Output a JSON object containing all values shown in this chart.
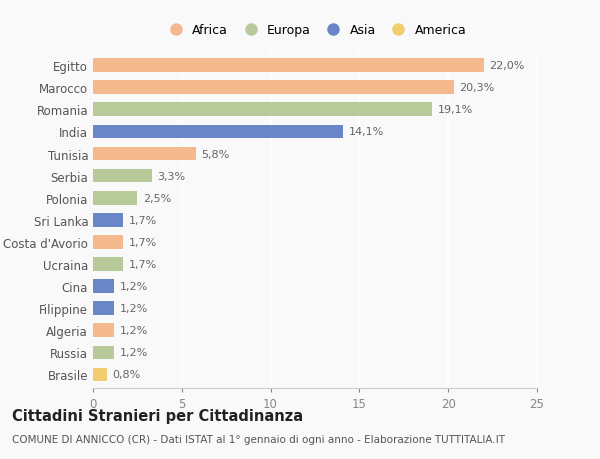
{
  "countries": [
    "Egitto",
    "Marocco",
    "Romania",
    "India",
    "Tunisia",
    "Serbia",
    "Polonia",
    "Sri Lanka",
    "Costa d'Avorio",
    "Ucraina",
    "Cina",
    "Filippine",
    "Algeria",
    "Russia",
    "Brasile"
  ],
  "values": [
    22.0,
    20.3,
    19.1,
    14.1,
    5.8,
    3.3,
    2.5,
    1.7,
    1.7,
    1.7,
    1.2,
    1.2,
    1.2,
    1.2,
    0.8
  ],
  "labels": [
    "22,0%",
    "20,3%",
    "19,1%",
    "14,1%",
    "5,8%",
    "3,3%",
    "2,5%",
    "1,7%",
    "1,7%",
    "1,7%",
    "1,2%",
    "1,2%",
    "1,2%",
    "1,2%",
    "0,8%"
  ],
  "continents": [
    "Africa",
    "Africa",
    "Europa",
    "Asia",
    "Africa",
    "Europa",
    "Europa",
    "Asia",
    "Africa",
    "Europa",
    "Asia",
    "Asia",
    "Africa",
    "Europa",
    "America"
  ],
  "colors": {
    "Africa": "#F5B990",
    "Europa": "#B8C99A",
    "Asia": "#6B86C8",
    "America": "#F2CC6E"
  },
  "legend_order": [
    "Africa",
    "Europa",
    "Asia",
    "America"
  ],
  "xlim": [
    0,
    25
  ],
  "xticks": [
    0,
    5,
    10,
    15,
    20,
    25
  ],
  "title": "Cittadini Stranieri per Cittadinanza",
  "subtitle": "COMUNE DI ANNICCO (CR) - Dati ISTAT al 1° gennaio di ogni anno - Elaborazione TUTTITALIA.IT",
  "background_color": "#f9f9f9",
  "bar_height": 0.62,
  "label_fontsize": 8,
  "tick_fontsize": 8.5,
  "title_fontsize": 10.5,
  "subtitle_fontsize": 7.5
}
